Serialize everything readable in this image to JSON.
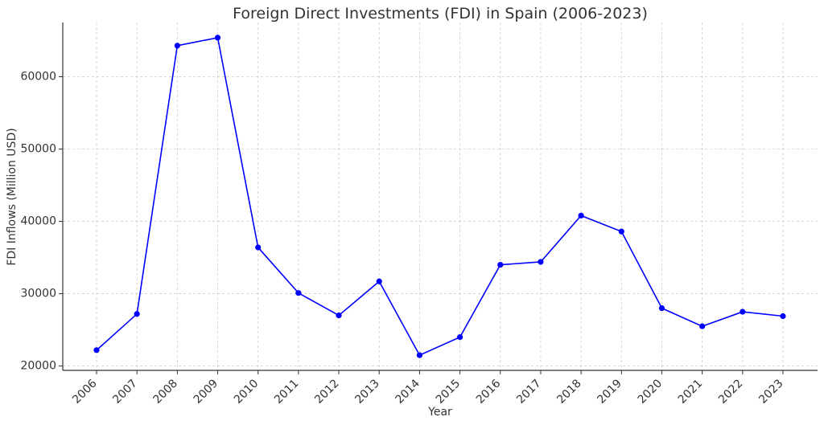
{
  "chart_data": {
    "type": "line",
    "title": "Foreign Direct Investments (FDI) in Spain (2006-2023)",
    "xlabel": "Year",
    "ylabel": "FDI Inflows (Million USD)",
    "categories": [
      "2006",
      "2007",
      "2008",
      "2009",
      "2010",
      "2011",
      "2012",
      "2013",
      "2014",
      "2015",
      "2016",
      "2017",
      "2018",
      "2019",
      "2020",
      "2021",
      "2022",
      "2023"
    ],
    "series": [
      {
        "name": "FDI Inflows",
        "color": "#0000ff",
        "values": [
          22200,
          27200,
          64300,
          65400,
          36400,
          30100,
          27000,
          31700,
          21500,
          24000,
          34000,
          34400,
          40800,
          38600,
          28000,
          25500,
          27500,
          26900
        ]
      }
    ],
    "ylim": [
      19400,
      67500
    ],
    "yticks": [
      20000,
      30000,
      40000,
      50000,
      60000
    ],
    "grid": true
  }
}
